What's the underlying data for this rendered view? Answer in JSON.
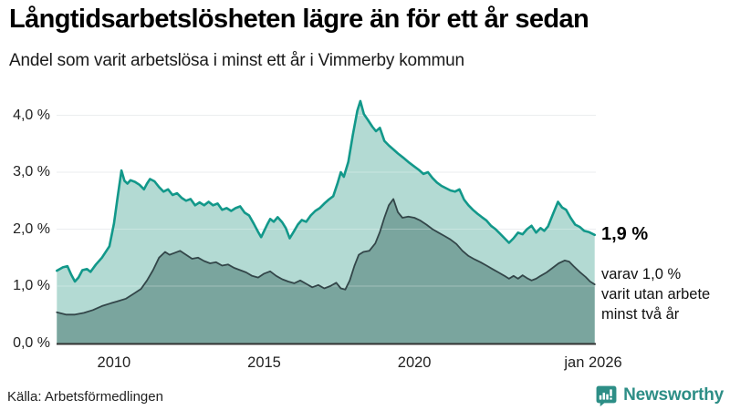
{
  "header": {
    "title": "Långtidsarbetslösheten lägre än för ett år sedan",
    "subtitle": "Andel som varit arbetslösa i minst ett år i Vimmerby kommun"
  },
  "footer": {
    "source": "Källa: Arbetsförmedlingen",
    "brand": "Newsworthy"
  },
  "colors": {
    "grid": "#e3e6e8",
    "grid_overlay": "rgba(255,255,255,0.30)",
    "axis": "#333333",
    "tick_text": "#222222",
    "brand_teal": "#2d8e86"
  },
  "chart_data": {
    "type": "area",
    "title": "Långtidsarbetslösheten lägre än för ett år sedan",
    "subtitle": "Andel som varit arbetslösa i minst ett år i Vimmerby kommun",
    "xlabel": "",
    "ylabel": "",
    "unit": "%",
    "grid": true,
    "legend": false,
    "x_domain": [
      2008.09,
      2026.04
    ],
    "ylim": [
      0,
      4.4
    ],
    "y_ticks": [
      {
        "value": 0,
        "label": "0,0 %"
      },
      {
        "value": 1,
        "label": "1,0 %"
      },
      {
        "value": 2,
        "label": "2,0 %"
      },
      {
        "value": 3,
        "label": "3,0 %"
      },
      {
        "value": 4,
        "label": "4,0 %"
      }
    ],
    "x_ticks": [
      {
        "value": 2010,
        "label": "2010"
      },
      {
        "value": 2015,
        "label": "2015"
      },
      {
        "value": 2020,
        "label": "2020"
      },
      {
        "value": 2025.95,
        "label": "jan 2026"
      }
    ],
    "annotations": {
      "latest_value_label": "1,9 %",
      "secondary_label_lines": [
        "varav 1,0 %",
        "varit utan arbete",
        "minst två år"
      ]
    },
    "series": [
      {
        "name": "Andel arbetslösa minst ett år",
        "line_color": "#12988a",
        "fill_color": "#b3dad3",
        "line_width": 2.6,
        "latest_value": 1.9,
        "points": [
          [
            2008.1,
            1.27
          ],
          [
            2008.3,
            1.33
          ],
          [
            2008.45,
            1.35
          ],
          [
            2008.58,
            1.2
          ],
          [
            2008.7,
            1.08
          ],
          [
            2008.82,
            1.15
          ],
          [
            2008.95,
            1.28
          ],
          [
            2009.1,
            1.3
          ],
          [
            2009.22,
            1.25
          ],
          [
            2009.4,
            1.38
          ],
          [
            2009.6,
            1.5
          ],
          [
            2009.85,
            1.7
          ],
          [
            2010.0,
            2.1
          ],
          [
            2010.12,
            2.55
          ],
          [
            2010.25,
            3.03
          ],
          [
            2010.35,
            2.85
          ],
          [
            2010.45,
            2.8
          ],
          [
            2010.55,
            2.86
          ],
          [
            2010.7,
            2.83
          ],
          [
            2010.85,
            2.78
          ],
          [
            2011.0,
            2.7
          ],
          [
            2011.1,
            2.8
          ],
          [
            2011.2,
            2.88
          ],
          [
            2011.35,
            2.84
          ],
          [
            2011.5,
            2.74
          ],
          [
            2011.65,
            2.66
          ],
          [
            2011.8,
            2.7
          ],
          [
            2011.95,
            2.6
          ],
          [
            2012.1,
            2.63
          ],
          [
            2012.25,
            2.55
          ],
          [
            2012.4,
            2.5
          ],
          [
            2012.55,
            2.53
          ],
          [
            2012.7,
            2.42
          ],
          [
            2012.85,
            2.47
          ],
          [
            2013.0,
            2.42
          ],
          [
            2013.15,
            2.48
          ],
          [
            2013.3,
            2.42
          ],
          [
            2013.45,
            2.45
          ],
          [
            2013.6,
            2.34
          ],
          [
            2013.75,
            2.37
          ],
          [
            2013.9,
            2.32
          ],
          [
            2014.05,
            2.37
          ],
          [
            2014.2,
            2.4
          ],
          [
            2014.35,
            2.29
          ],
          [
            2014.5,
            2.24
          ],
          [
            2014.65,
            2.1
          ],
          [
            2014.8,
            1.95
          ],
          [
            2014.9,
            1.86
          ],
          [
            2015.0,
            1.97
          ],
          [
            2015.1,
            2.08
          ],
          [
            2015.2,
            2.18
          ],
          [
            2015.32,
            2.13
          ],
          [
            2015.45,
            2.21
          ],
          [
            2015.6,
            2.12
          ],
          [
            2015.72,
            2.02
          ],
          [
            2015.85,
            1.84
          ],
          [
            2016.0,
            1.97
          ],
          [
            2016.12,
            2.08
          ],
          [
            2016.25,
            2.16
          ],
          [
            2016.4,
            2.13
          ],
          [
            2016.55,
            2.24
          ],
          [
            2016.7,
            2.32
          ],
          [
            2016.85,
            2.37
          ],
          [
            2017.0,
            2.45
          ],
          [
            2017.15,
            2.52
          ],
          [
            2017.3,
            2.58
          ],
          [
            2017.45,
            2.82
          ],
          [
            2017.55,
            3.0
          ],
          [
            2017.65,
            2.92
          ],
          [
            2017.8,
            3.18
          ],
          [
            2017.95,
            3.65
          ],
          [
            2018.1,
            4.08
          ],
          [
            2018.2,
            4.25
          ],
          [
            2018.32,
            4.02
          ],
          [
            2018.45,
            3.92
          ],
          [
            2018.6,
            3.8
          ],
          [
            2018.72,
            3.72
          ],
          [
            2018.85,
            3.78
          ],
          [
            2019.0,
            3.55
          ],
          [
            2019.15,
            3.47
          ],
          [
            2019.3,
            3.4
          ],
          [
            2019.45,
            3.33
          ],
          [
            2019.62,
            3.26
          ],
          [
            2019.8,
            3.18
          ],
          [
            2020.0,
            3.1
          ],
          [
            2020.15,
            3.04
          ],
          [
            2020.3,
            2.97
          ],
          [
            2020.45,
            3.0
          ],
          [
            2020.6,
            2.9
          ],
          [
            2020.75,
            2.82
          ],
          [
            2020.9,
            2.76
          ],
          [
            2021.05,
            2.72
          ],
          [
            2021.2,
            2.68
          ],
          [
            2021.35,
            2.66
          ],
          [
            2021.5,
            2.7
          ],
          [
            2021.65,
            2.52
          ],
          [
            2021.8,
            2.42
          ],
          [
            2021.95,
            2.34
          ],
          [
            2022.1,
            2.27
          ],
          [
            2022.25,
            2.21
          ],
          [
            2022.4,
            2.15
          ],
          [
            2022.55,
            2.06
          ],
          [
            2022.7,
            2.0
          ],
          [
            2022.85,
            1.92
          ],
          [
            2023.0,
            1.84
          ],
          [
            2023.15,
            1.76
          ],
          [
            2023.3,
            1.84
          ],
          [
            2023.45,
            1.94
          ],
          [
            2023.6,
            1.91
          ],
          [
            2023.75,
            2.0
          ],
          [
            2023.9,
            2.06
          ],
          [
            2024.05,
            1.94
          ],
          [
            2024.2,
            2.02
          ],
          [
            2024.32,
            1.97
          ],
          [
            2024.45,
            2.05
          ],
          [
            2024.6,
            2.25
          ],
          [
            2024.78,
            2.48
          ],
          [
            2024.92,
            2.38
          ],
          [
            2025.05,
            2.34
          ],
          [
            2025.2,
            2.2
          ],
          [
            2025.35,
            2.08
          ],
          [
            2025.5,
            2.04
          ],
          [
            2025.65,
            1.97
          ],
          [
            2025.8,
            1.95
          ],
          [
            2026.0,
            1.9
          ]
        ]
      },
      {
        "name": "varav arbetslösa minst två år",
        "line_color": "#334649",
        "fill_color": "#7aa59e",
        "line_width": 1.8,
        "latest_value": 1.0,
        "points": [
          [
            2008.1,
            0.54
          ],
          [
            2008.4,
            0.5
          ],
          [
            2008.7,
            0.5
          ],
          [
            2009.0,
            0.53
          ],
          [
            2009.3,
            0.58
          ],
          [
            2009.6,
            0.65
          ],
          [
            2009.9,
            0.7
          ],
          [
            2010.1,
            0.73
          ],
          [
            2010.4,
            0.78
          ],
          [
            2010.7,
            0.88
          ],
          [
            2010.9,
            0.95
          ],
          [
            2011.1,
            1.1
          ],
          [
            2011.3,
            1.28
          ],
          [
            2011.5,
            1.5
          ],
          [
            2011.7,
            1.6
          ],
          [
            2011.85,
            1.55
          ],
          [
            2012.0,
            1.58
          ],
          [
            2012.2,
            1.62
          ],
          [
            2012.4,
            1.55
          ],
          [
            2012.6,
            1.48
          ],
          [
            2012.8,
            1.5
          ],
          [
            2013.0,
            1.44
          ],
          [
            2013.2,
            1.4
          ],
          [
            2013.4,
            1.42
          ],
          [
            2013.6,
            1.36
          ],
          [
            2013.8,
            1.38
          ],
          [
            2014.0,
            1.32
          ],
          [
            2014.2,
            1.28
          ],
          [
            2014.4,
            1.24
          ],
          [
            2014.6,
            1.18
          ],
          [
            2014.8,
            1.15
          ],
          [
            2015.0,
            1.22
          ],
          [
            2015.2,
            1.26
          ],
          [
            2015.4,
            1.18
          ],
          [
            2015.6,
            1.12
          ],
          [
            2015.8,
            1.08
          ],
          [
            2016.0,
            1.05
          ],
          [
            2016.2,
            1.1
          ],
          [
            2016.4,
            1.04
          ],
          [
            2016.6,
            0.98
          ],
          [
            2016.8,
            1.02
          ],
          [
            2017.0,
            0.96
          ],
          [
            2017.2,
            1.0
          ],
          [
            2017.4,
            1.06
          ],
          [
            2017.55,
            0.96
          ],
          [
            2017.7,
            0.94
          ],
          [
            2017.85,
            1.1
          ],
          [
            2018.0,
            1.35
          ],
          [
            2018.15,
            1.55
          ],
          [
            2018.3,
            1.6
          ],
          [
            2018.5,
            1.62
          ],
          [
            2018.7,
            1.75
          ],
          [
            2018.85,
            1.95
          ],
          [
            2019.0,
            2.2
          ],
          [
            2019.15,
            2.42
          ],
          [
            2019.3,
            2.53
          ],
          [
            2019.45,
            2.3
          ],
          [
            2019.6,
            2.2
          ],
          [
            2019.8,
            2.22
          ],
          [
            2020.0,
            2.2
          ],
          [
            2020.2,
            2.15
          ],
          [
            2020.4,
            2.08
          ],
          [
            2020.6,
            2.0
          ],
          [
            2020.8,
            1.94
          ],
          [
            2021.0,
            1.88
          ],
          [
            2021.2,
            1.82
          ],
          [
            2021.4,
            1.74
          ],
          [
            2021.6,
            1.62
          ],
          [
            2021.8,
            1.53
          ],
          [
            2022.0,
            1.47
          ],
          [
            2022.2,
            1.42
          ],
          [
            2022.4,
            1.36
          ],
          [
            2022.6,
            1.3
          ],
          [
            2022.8,
            1.24
          ],
          [
            2023.0,
            1.18
          ],
          [
            2023.15,
            1.13
          ],
          [
            2023.3,
            1.18
          ],
          [
            2023.45,
            1.13
          ],
          [
            2023.6,
            1.19
          ],
          [
            2023.75,
            1.14
          ],
          [
            2023.9,
            1.1
          ],
          [
            2024.05,
            1.13
          ],
          [
            2024.2,
            1.18
          ],
          [
            2024.4,
            1.24
          ],
          [
            2024.6,
            1.32
          ],
          [
            2024.8,
            1.4
          ],
          [
            2025.0,
            1.45
          ],
          [
            2025.15,
            1.43
          ],
          [
            2025.3,
            1.35
          ],
          [
            2025.5,
            1.25
          ],
          [
            2025.7,
            1.16
          ],
          [
            2025.85,
            1.08
          ],
          [
            2026.0,
            1.03
          ]
        ]
      }
    ]
  }
}
